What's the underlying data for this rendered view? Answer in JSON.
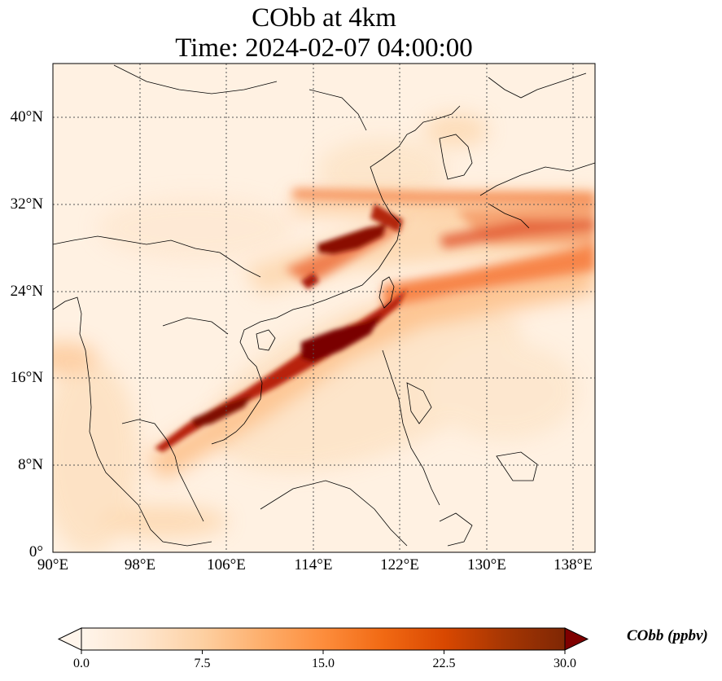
{
  "title": {
    "line1": "CObb at 4km",
    "line2": "Time: 2024-02-07 04:00:00"
  },
  "map": {
    "lon_range": [
      90,
      140
    ],
    "lat_range": [
      0,
      45
    ],
    "x_ticks": [
      "90°E",
      "98°E",
      "106°E",
      "114°E",
      "122°E",
      "130°E",
      "138°E"
    ],
    "y_ticks": [
      "0°",
      "8°N",
      "16°N",
      "24°N",
      "32°N",
      "40°N"
    ],
    "gridlines": "dotted",
    "field": "CObb concentration, plume from Indochina to Taiwan and across East China Sea toward Japan"
  },
  "colorbar": {
    "label": "CObb (ppbv)",
    "ticks": [
      "0.0",
      "7.5",
      "15.0",
      "22.5",
      "30.0"
    ],
    "range": [
      0,
      30
    ],
    "extend": "both",
    "colormap": [
      "#fff5eb",
      "#fee6ce",
      "#fdd0a2",
      "#fdae6b",
      "#fd8d3c",
      "#f16913",
      "#d94801",
      "#a63603",
      "#7f2704"
    ]
  }
}
